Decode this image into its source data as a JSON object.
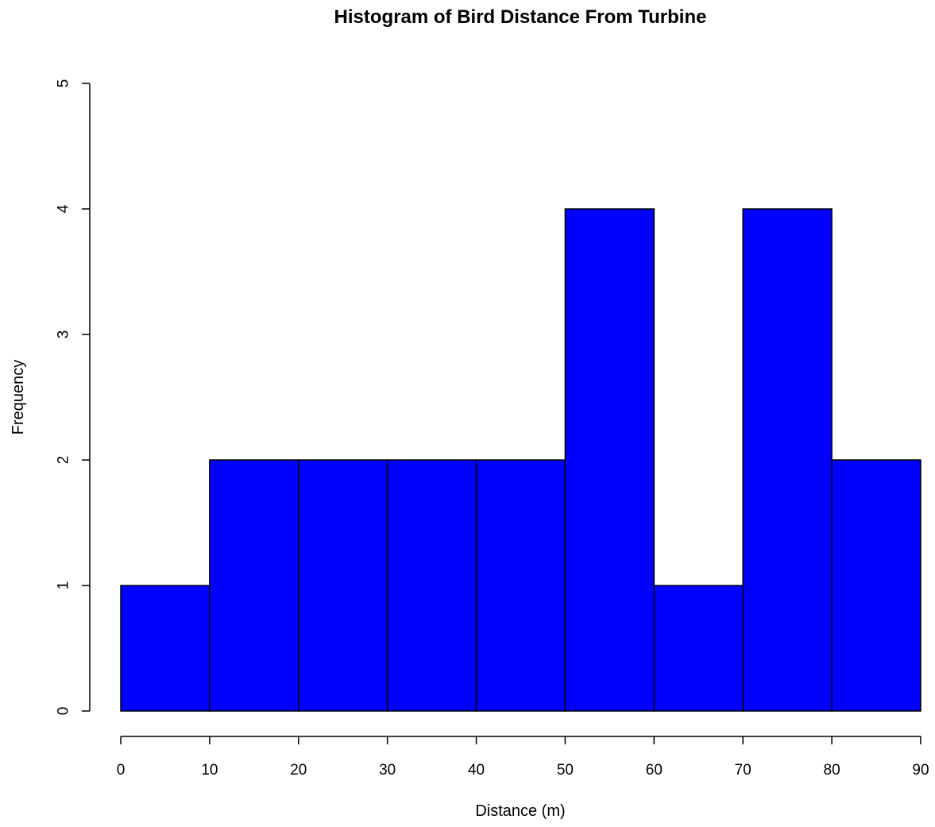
{
  "chart_data": {
    "type": "bar",
    "title": "Histogram of Bird Distance From Turbine",
    "xlabel": "Distance (m)",
    "ylabel": "Frequency",
    "bins": [
      {
        "start": 0,
        "end": 10,
        "count": 1
      },
      {
        "start": 10,
        "end": 20,
        "count": 2
      },
      {
        "start": 20,
        "end": 30,
        "count": 2
      },
      {
        "start": 30,
        "end": 40,
        "count": 2
      },
      {
        "start": 40,
        "end": 50,
        "count": 2
      },
      {
        "start": 50,
        "end": 60,
        "count": 4
      },
      {
        "start": 60,
        "end": 70,
        "count": 1
      },
      {
        "start": 70,
        "end": 80,
        "count": 4
      },
      {
        "start": 80,
        "end": 90,
        "count": 2
      }
    ],
    "x_ticks": [
      "0",
      "10",
      "20",
      "30",
      "40",
      "50",
      "60",
      "70",
      "80",
      "90"
    ],
    "y_ticks": [
      "0",
      "1",
      "2",
      "3",
      "4",
      "5"
    ],
    "xlim": [
      0,
      90
    ],
    "ylim": [
      0,
      5
    ],
    "grid": false,
    "bar_fill_color": "#0000ff",
    "bar_edge_color": "#000000"
  }
}
